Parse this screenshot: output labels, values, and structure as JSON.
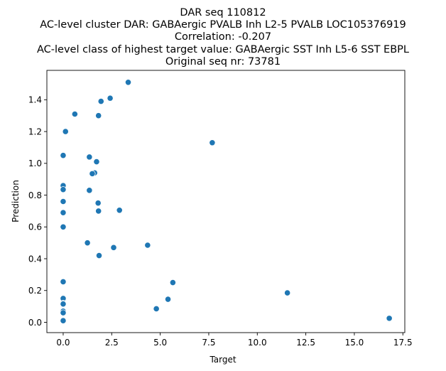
{
  "chart_data": {
    "type": "scatter",
    "title_lines": [
      "DAR seq 110812",
      "AC-level cluster DAR: GABAergic PVALB Inh L2-5 PVALB LOC105376919",
      "Correlation: -0.207",
      "AC-level class of highest target value: GABAergic SST Inh L5-6 SST EBPL",
      "Original seq nr: 73781"
    ],
    "xlabel": "Target",
    "ylabel": "Prediction",
    "xlim": [
      -0.84,
      17.6
    ],
    "ylim": [
      -0.065,
      1.585
    ],
    "xticks": [
      0.0,
      2.5,
      5.0,
      7.5,
      10.0,
      12.5,
      15.0,
      17.5
    ],
    "xtick_labels": [
      "0.0",
      "2.5",
      "5.0",
      "7.5",
      "10.0",
      "12.5",
      "15.0",
      "17.5"
    ],
    "yticks": [
      0.0,
      0.2,
      0.4,
      0.6,
      0.8,
      1.0,
      1.2,
      1.4
    ],
    "ytick_labels": [
      "0.0",
      "0.2",
      "0.4",
      "0.6",
      "0.8",
      "1.0",
      "1.2",
      "1.4"
    ],
    "grid": false,
    "color": "#1f77b4",
    "points": [
      {
        "x": 3.35,
        "y": 1.51
      },
      {
        "x": 2.42,
        "y": 1.41
      },
      {
        "x": 1.95,
        "y": 1.39
      },
      {
        "x": 0.6,
        "y": 1.31
      },
      {
        "x": 1.82,
        "y": 1.3
      },
      {
        "x": 0.12,
        "y": 1.2
      },
      {
        "x": 7.68,
        "y": 1.13
      },
      {
        "x": 0.0,
        "y": 1.05
      },
      {
        "x": 1.35,
        "y": 1.04
      },
      {
        "x": 1.72,
        "y": 1.01
      },
      {
        "x": 1.62,
        "y": 0.94
      },
      {
        "x": 1.5,
        "y": 0.935
      },
      {
        "x": 0.0,
        "y": 0.86
      },
      {
        "x": 0.0,
        "y": 0.835
      },
      {
        "x": 1.35,
        "y": 0.83
      },
      {
        "x": 0.0,
        "y": 0.76
      },
      {
        "x": 1.8,
        "y": 0.75
      },
      {
        "x": 2.9,
        "y": 0.705
      },
      {
        "x": 1.82,
        "y": 0.7
      },
      {
        "x": 0.0,
        "y": 0.69
      },
      {
        "x": 0.0,
        "y": 0.6
      },
      {
        "x": 1.25,
        "y": 0.5
      },
      {
        "x": 4.35,
        "y": 0.485
      },
      {
        "x": 2.6,
        "y": 0.47
      },
      {
        "x": 1.85,
        "y": 0.42
      },
      {
        "x": 0.0,
        "y": 0.255
      },
      {
        "x": 5.65,
        "y": 0.25
      },
      {
        "x": 11.55,
        "y": 0.185
      },
      {
        "x": 0.0,
        "y": 0.15
      },
      {
        "x": 5.4,
        "y": 0.145
      },
      {
        "x": 0.0,
        "y": 0.12
      },
      {
        "x": 0.0,
        "y": 0.115
      },
      {
        "x": 4.8,
        "y": 0.085
      },
      {
        "x": 0.0,
        "y": 0.07
      },
      {
        "x": 0.0,
        "y": 0.06
      },
      {
        "x": 16.8,
        "y": 0.025
      },
      {
        "x": 0.0,
        "y": 0.01
      }
    ]
  }
}
